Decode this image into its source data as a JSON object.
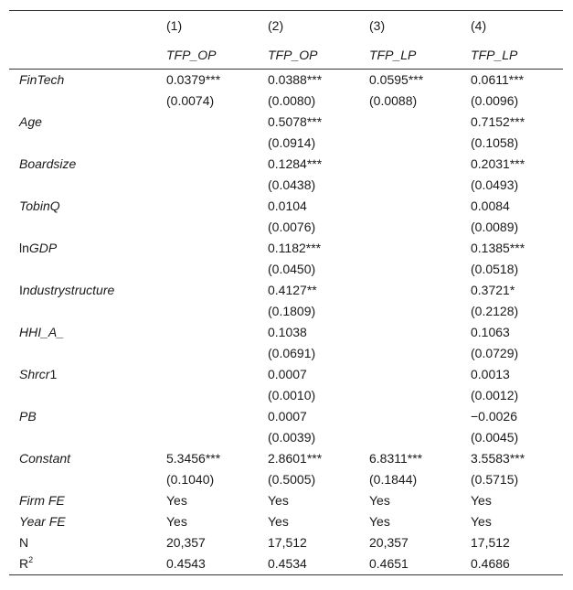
{
  "columns": [
    {
      "num": "(1)",
      "model": "TFP_OP"
    },
    {
      "num": "(2)",
      "model": "TFP_OP"
    },
    {
      "num": "(3)",
      "model": "TFP_LP"
    },
    {
      "num": "(4)",
      "model": "TFP_LP"
    }
  ],
  "rows": [
    {
      "label_pre": "",
      "label_it": "FinTech",
      "label_post": "",
      "coef": [
        "0.0379***",
        "0.0388***",
        "0.0595***",
        "0.0611***"
      ],
      "se": [
        "(0.0074)",
        "(0.0080)",
        "(0.0088)",
        "(0.0096)"
      ]
    },
    {
      "label_pre": "",
      "label_it": "Age",
      "label_post": "",
      "coef": [
        "",
        "0.5078***",
        "",
        "0.7152***"
      ],
      "se": [
        "",
        "(0.0914)",
        "",
        "(0.1058)"
      ]
    },
    {
      "label_pre": "",
      "label_it": "Boardsize",
      "label_post": "",
      "coef": [
        "",
        "0.1284***",
        "",
        "0.2031***"
      ],
      "se": [
        "",
        "(0.0438)",
        "",
        "(0.0493)"
      ]
    },
    {
      "label_pre": "",
      "label_it": "TobinQ",
      "label_post": "",
      "coef": [
        "",
        "0.0104",
        "",
        "0.0084"
      ],
      "se": [
        "",
        "(0.0076)",
        "",
        "(0.0089)"
      ]
    },
    {
      "label_pre": "ln",
      "label_it": "GDP",
      "label_post": "",
      "coef": [
        "",
        "0.1182***",
        "",
        "0.1385***"
      ],
      "se": [
        "",
        "(0.0450)",
        "",
        "(0.0518)"
      ]
    },
    {
      "label_pre": "I",
      "label_it": "ndustrystructure",
      "label_post": "",
      "coef": [
        "",
        "0.4127**",
        "",
        "0.3721*"
      ],
      "se": [
        "",
        "(0.1809)",
        "",
        "(0.2128)"
      ]
    },
    {
      "label_pre": "",
      "label_it": "HHI_A_",
      "label_post": "",
      "coef": [
        "",
        "0.1038",
        "",
        "0.1063"
      ],
      "se": [
        "",
        "(0.0691)",
        "",
        "(0.0729)"
      ]
    },
    {
      "label_pre": "",
      "label_it": "Shrcr",
      "label_post": "1",
      "coef": [
        "",
        "0.0007",
        "",
        "0.0013"
      ],
      "se": [
        "",
        "(0.0010)",
        "",
        "(0.0012)"
      ]
    },
    {
      "label_pre": "",
      "label_it": "PB",
      "label_post": "",
      "coef": [
        "",
        "0.0007",
        "",
        "−0.0026"
      ],
      "se": [
        "",
        "(0.0039)",
        "",
        "(0.0045)"
      ]
    },
    {
      "label_pre": "",
      "label_it": "Constant",
      "label_post": "",
      "coef": [
        "5.3456***",
        "2.8601***",
        "6.8311***",
        "3.5583***"
      ],
      "se": [
        "(0.1040)",
        "(0.5005)",
        "(0.1844)",
        "(0.5715)"
      ]
    }
  ],
  "fe_rows": [
    {
      "label": "Firm FE",
      "vals": [
        "Yes",
        "Yes",
        "Yes",
        "Yes"
      ]
    },
    {
      "label": "Year FE",
      "vals": [
        "Yes",
        "Yes",
        "Yes",
        "Yes"
      ]
    }
  ],
  "stat_rows": [
    {
      "label": "N",
      "sup": "",
      "vals": [
        "20,357",
        "17,512",
        "20,357",
        "17,512"
      ]
    },
    {
      "label": "R",
      "sup": "2",
      "vals": [
        "0.4543",
        "0.4534",
        "0.4651",
        "0.4686"
      ]
    }
  ]
}
